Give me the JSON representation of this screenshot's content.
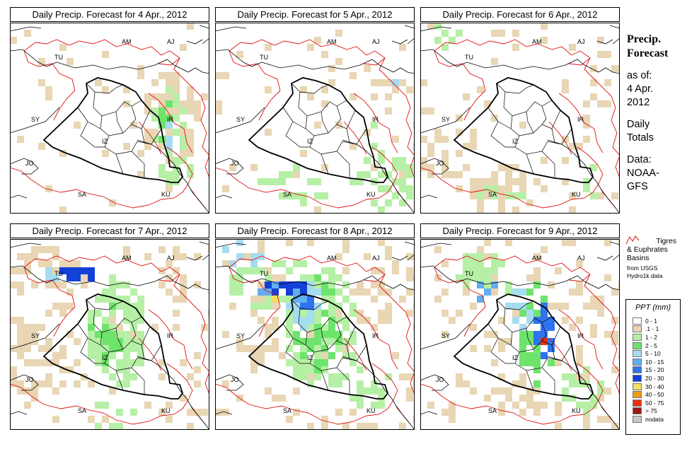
{
  "panels": [
    {
      "title": "Daily Precip. Forecast for  4 Apr., 2012",
      "level": 1
    },
    {
      "title": "Daily Precip. Forecast for  5 Apr., 2012",
      "level": 1
    },
    {
      "title": "Daily Precip. Forecast for  6 Apr., 2012",
      "level": 1
    },
    {
      "title": "Daily Precip. Forecast for  7 Apr., 2012",
      "level": 2
    },
    {
      "title": "Daily Precip. Forecast for  8 Apr., 2012",
      "level": 3
    },
    {
      "title": "Daily Precip. Forecast for  9 Apr., 2012",
      "level": 3
    }
  ],
  "country_labels": {
    "am": "AM",
    "aj": "AJ",
    "tu": "TU",
    "sy": "SY",
    "ir": "IR",
    "iz": "IZ",
    "jo": "JO",
    "sa": "SA",
    "ku": "KU"
  },
  "sidebar": {
    "title_line1": "Precip.",
    "title_line2": "Forecast",
    "asof": "as of:",
    "date1": "4 Apr.",
    "date2": "2012",
    "totals1": "Daily",
    "totals2": "Totals",
    "data1": "Data:",
    "data2": "NOAA-",
    "data3": "GFS"
  },
  "basins": {
    "line1": "Tigres",
    "line2": "& Euphrates",
    "line3": "Basins",
    "source1": "from USGS",
    "source2": "Hydro1k data"
  },
  "legend": {
    "title": "PPT (mm)",
    "items": [
      {
        "label": "0 - 1",
        "color": "#ffffff"
      },
      {
        "label": ".1 - 1",
        "color": "#e8d6b4"
      },
      {
        "label": "1 - 2",
        "color": "#b6f0a6"
      },
      {
        "label": "2 - 5",
        "color": "#6ee46c"
      },
      {
        "label": "5 - 10",
        "color": "#a6dcf2"
      },
      {
        "label": "10 - 15",
        "color": "#62aef0"
      },
      {
        "label": "15 - 20",
        "color": "#2f74ee"
      },
      {
        "label": "20 - 30",
        "color": "#1240d8"
      },
      {
        "label": "30 - 40",
        "color": "#f2e060"
      },
      {
        "label": "40 - 50",
        "color": "#f29a1a"
      },
      {
        "label": "50 - 75",
        "color": "#e8300c"
      },
      {
        "label": "> 75",
        "color": "#9e1616"
      },
      {
        "label": "nodata",
        "color": "#c8c8c8"
      }
    ]
  },
  "colors": {
    "basin_outline": "#e01010",
    "borders": "#000000"
  }
}
